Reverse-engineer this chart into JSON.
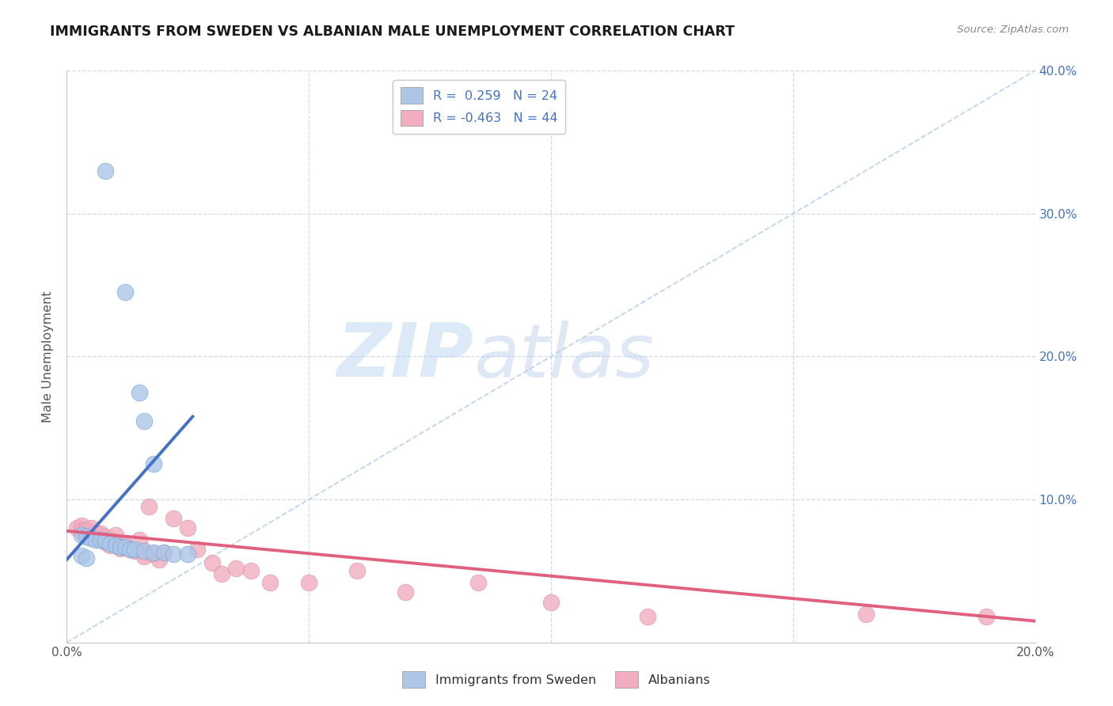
{
  "title": "IMMIGRANTS FROM SWEDEN VS ALBANIAN MALE UNEMPLOYMENT CORRELATION CHART",
  "source": "Source: ZipAtlas.com",
  "ylabel": "Male Unemployment",
  "legend_label_blue": "Immigrants from Sweden",
  "legend_label_pink": "Albanians",
  "legend_r_blue": "R =  0.259",
  "legend_n_blue": "N = 24",
  "legend_r_pink": "R = -0.463",
  "legend_n_pink": "N = 44",
  "watermark_zip": "ZIP",
  "watermark_atlas": "atlas",
  "xlim": [
    0,
    0.2
  ],
  "ylim": [
    0,
    0.4
  ],
  "color_blue": "#adc6e8",
  "color_pink": "#f2adc0",
  "color_blue_line": "#4472c4",
  "color_pink_line": "#e06080",
  "color_dashed_line": "#b8d0ec",
  "background_color": "#ffffff",
  "grid_color": "#d0daea",
  "title_color": "#1a1a1a",
  "title_fontsize": 12.5,
  "axis_label_color": "#555555",
  "tick_color_right": "#4472c4",
  "blue_scatter_x": [
    0.008,
    0.012,
    0.015,
    0.016,
    0.018,
    0.003,
    0.004,
    0.005,
    0.006,
    0.007,
    0.008,
    0.009,
    0.01,
    0.011,
    0.012,
    0.013,
    0.014,
    0.016,
    0.018,
    0.02,
    0.022,
    0.025,
    0.003,
    0.004
  ],
  "blue_scatter_y": [
    0.33,
    0.245,
    0.175,
    0.155,
    0.125,
    0.075,
    0.074,
    0.073,
    0.072,
    0.072,
    0.071,
    0.069,
    0.068,
    0.067,
    0.067,
    0.065,
    0.065,
    0.064,
    0.063,
    0.063,
    0.062,
    0.062,
    0.061,
    0.059
  ],
  "pink_scatter_x": [
    0.002,
    0.003,
    0.003,
    0.004,
    0.004,
    0.005,
    0.005,
    0.006,
    0.006,
    0.007,
    0.007,
    0.008,
    0.008,
    0.009,
    0.009,
    0.01,
    0.01,
    0.011,
    0.012,
    0.013,
    0.014,
    0.015,
    0.016,
    0.016,
    0.017,
    0.018,
    0.019,
    0.02,
    0.022,
    0.025,
    0.027,
    0.03,
    0.032,
    0.035,
    0.038,
    0.042,
    0.05,
    0.06,
    0.07,
    0.085,
    0.1,
    0.12,
    0.165,
    0.19
  ],
  "pink_scatter_y": [
    0.08,
    0.082,
    0.078,
    0.079,
    0.075,
    0.08,
    0.074,
    0.077,
    0.073,
    0.076,
    0.072,
    0.074,
    0.07,
    0.072,
    0.068,
    0.069,
    0.075,
    0.066,
    0.068,
    0.065,
    0.064,
    0.072,
    0.063,
    0.06,
    0.095,
    0.062,
    0.058,
    0.063,
    0.087,
    0.08,
    0.065,
    0.056,
    0.048,
    0.052,
    0.05,
    0.042,
    0.042,
    0.05,
    0.035,
    0.042,
    0.028,
    0.018,
    0.02,
    0.018
  ],
  "blue_line_x": [
    0.0,
    0.026
  ],
  "blue_line_y": [
    0.058,
    0.158
  ],
  "pink_line_x": [
    0.0,
    0.2
  ],
  "pink_line_y": [
    0.078,
    0.015
  ]
}
